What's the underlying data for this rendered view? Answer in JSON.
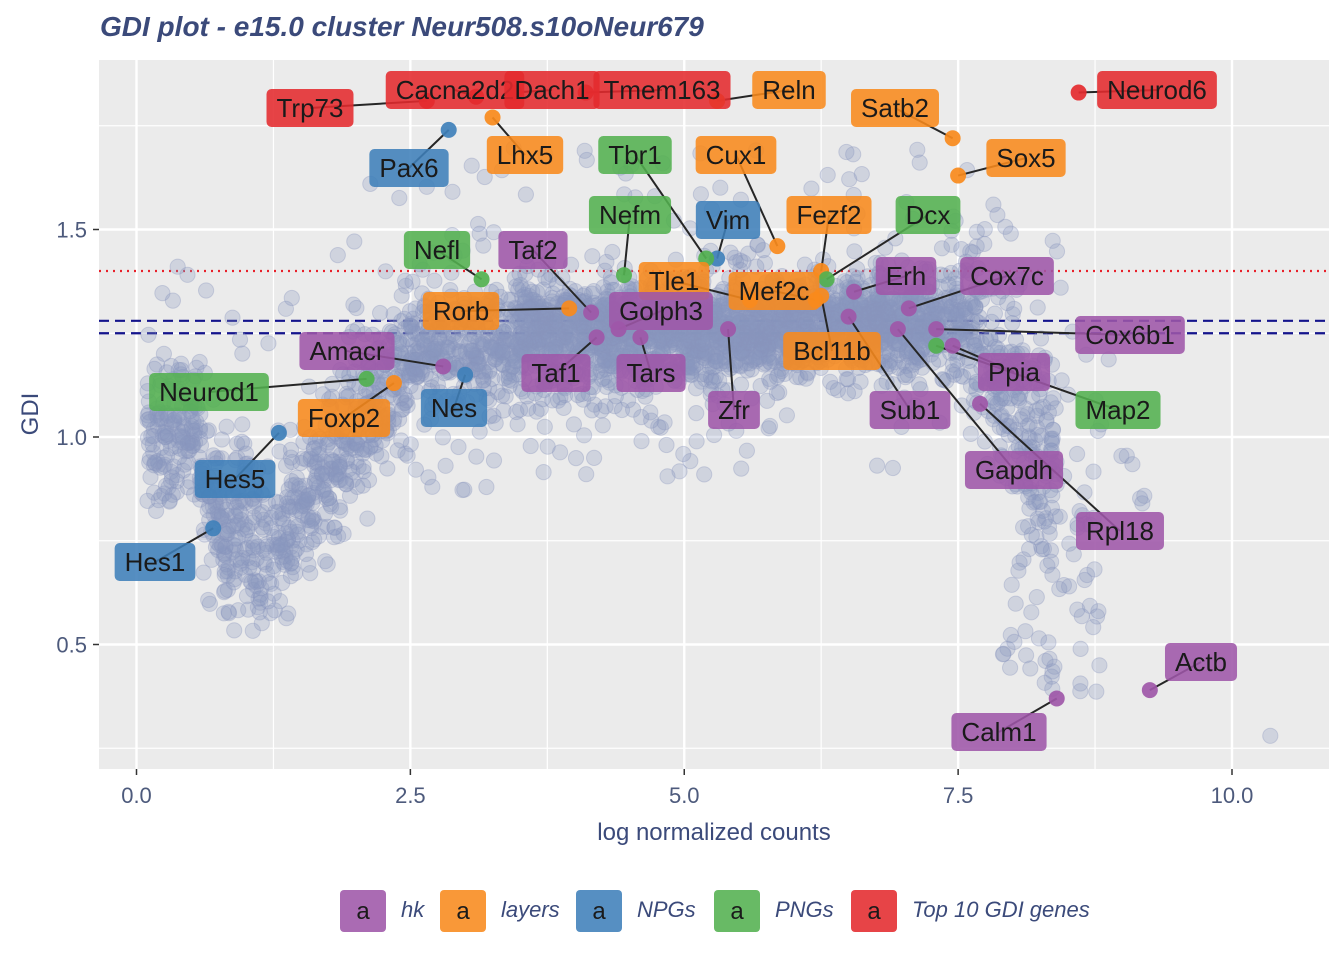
{
  "chart_data": {
    "type": "scatter",
    "title": "GDI plot - e15.0 cluster Neur508.s10oNeur679",
    "xlabel": "log normalized counts",
    "ylabel": "GDI",
    "xlim": [
      -0.2,
      10.8
    ],
    "ylim": [
      0.2,
      1.9
    ],
    "xticks": [
      0.0,
      2.5,
      5.0,
      7.5,
      10.0
    ],
    "xtick_labels": [
      "0.0",
      "2.5",
      "5.0",
      "7.5",
      "10.0"
    ],
    "yticks": [
      0.5,
      1.0,
      1.5
    ],
    "ytick_labels": [
      "0.5",
      "1.0",
      "1.5"
    ],
    "grid": true,
    "legend_position": "bottom",
    "reference_lines": [
      {
        "y": 1.4,
        "style": "dotted",
        "color": "#e8202a"
      },
      {
        "y": 1.28,
        "style": "dashed",
        "color": "#14148c"
      },
      {
        "y": 1.25,
        "style": "dashed",
        "color": "#14148c"
      }
    ],
    "categories": [
      {
        "name": "hk",
        "color": "#9e57a8",
        "key_glyph": "a"
      },
      {
        "name": "layers",
        "color": "#f88a1c",
        "key_glyph": "a"
      },
      {
        "name": "NPGs",
        "color": "#3f80ba",
        "key_glyph": "a"
      },
      {
        "name": "PNGs",
        "color": "#53b150",
        "key_glyph": "a"
      },
      {
        "name": "Top 10 GDI genes",
        "color": "#e42a2e",
        "key_glyph": "a"
      }
    ],
    "background_color": "#8a96bd",
    "labeled_genes": [
      {
        "gene": "Trp73",
        "x": 2.65,
        "y": 1.81,
        "category": "Top 10 GDI genes"
      },
      {
        "gene": "Cacna2d2",
        "x": 3.1,
        "y": 1.82,
        "category": "Top 10 GDI genes"
      },
      {
        "gene": "Dach1",
        "x": 3.45,
        "y": 1.83,
        "category": "Top 10 GDI genes"
      },
      {
        "gene": "Tmem163",
        "x": 4.1,
        "y": 1.83,
        "category": "Top 10 GDI genes"
      },
      {
        "gene": "Neurod6",
        "x": 8.6,
        "y": 1.83,
        "category": "Top 10 GDI genes"
      },
      {
        "gene": "Reln",
        "x": 5.3,
        "y": 1.81,
        "category": "layers"
      },
      {
        "gene": "Satb2",
        "x": 7.45,
        "y": 1.72,
        "category": "layers"
      },
      {
        "gene": "Lhx5",
        "x": 3.25,
        "y": 1.77,
        "category": "layers"
      },
      {
        "gene": "Sox5",
        "x": 7.5,
        "y": 1.63,
        "category": "layers"
      },
      {
        "gene": "Cux1",
        "x": 5.85,
        "y": 1.46,
        "category": "layers"
      },
      {
        "gene": "Fezf2",
        "x": 6.25,
        "y": 1.4,
        "category": "layers"
      },
      {
        "gene": "Tle1",
        "x": 5.6,
        "y": 1.33,
        "category": "layers"
      },
      {
        "gene": "Mef2c",
        "x": 6.2,
        "y": 1.33,
        "category": "layers"
      },
      {
        "gene": "Bcl11b",
        "x": 6.25,
        "y": 1.34,
        "category": "layers"
      },
      {
        "gene": "Rorb",
        "x": 3.95,
        "y": 1.31,
        "category": "layers"
      },
      {
        "gene": "Foxp2",
        "x": 2.35,
        "y": 1.13,
        "category": "layers"
      },
      {
        "gene": "Pax6",
        "x": 2.85,
        "y": 1.74,
        "category": "NPGs"
      },
      {
        "gene": "Vim",
        "x": 5.3,
        "y": 1.43,
        "category": "NPGs"
      },
      {
        "gene": "Nes",
        "x": 3.0,
        "y": 1.15,
        "category": "NPGs"
      },
      {
        "gene": "Hes5",
        "x": 1.3,
        "y": 1.01,
        "category": "NPGs"
      },
      {
        "gene": "Hes1",
        "x": 0.7,
        "y": 0.78,
        "category": "NPGs"
      },
      {
        "gene": "Tbr1",
        "x": 5.2,
        "y": 1.43,
        "category": "PNGs"
      },
      {
        "gene": "Nefm",
        "x": 4.45,
        "y": 1.39,
        "category": "PNGs"
      },
      {
        "gene": "Dcx",
        "x": 6.3,
        "y": 1.38,
        "category": "PNGs"
      },
      {
        "gene": "Nefl",
        "x": 3.15,
        "y": 1.38,
        "category": "PNGs"
      },
      {
        "gene": "Neurod1",
        "x": 2.1,
        "y": 1.14,
        "category": "PNGs"
      },
      {
        "gene": "Map2",
        "x": 7.3,
        "y": 1.22,
        "category": "PNGs"
      },
      {
        "gene": "Taf2",
        "x": 4.15,
        "y": 1.3,
        "category": "hk"
      },
      {
        "gene": "Golph3",
        "x": 4.4,
        "y": 1.26,
        "category": "hk"
      },
      {
        "gene": "Amacr",
        "x": 2.8,
        "y": 1.17,
        "category": "hk"
      },
      {
        "gene": "Taf1",
        "x": 4.2,
        "y": 1.24,
        "category": "hk"
      },
      {
        "gene": "Tars",
        "x": 4.6,
        "y": 1.24,
        "category": "hk"
      },
      {
        "gene": "Zfr",
        "x": 5.4,
        "y": 1.26,
        "category": "hk"
      },
      {
        "gene": "Erh",
        "x": 6.55,
        "y": 1.35,
        "category": "hk"
      },
      {
        "gene": "Cox7c",
        "x": 7.05,
        "y": 1.31,
        "category": "hk"
      },
      {
        "gene": "Cox6b1",
        "x": 7.3,
        "y": 1.26,
        "category": "hk"
      },
      {
        "gene": "Sub1",
        "x": 6.5,
        "y": 1.29,
        "category": "hk"
      },
      {
        "gene": "Ppia",
        "x": 7.45,
        "y": 1.22,
        "category": "hk"
      },
      {
        "gene": "Gapdh",
        "x": 6.95,
        "y": 1.26,
        "category": "hk"
      },
      {
        "gene": "Rpl18",
        "x": 7.7,
        "y": 1.08,
        "category": "hk"
      },
      {
        "gene": "Actb",
        "x": 9.25,
        "y": 0.39,
        "category": "hk"
      },
      {
        "gene": "Calm1",
        "x": 8.4,
        "y": 0.37,
        "category": "hk"
      }
    ]
  }
}
